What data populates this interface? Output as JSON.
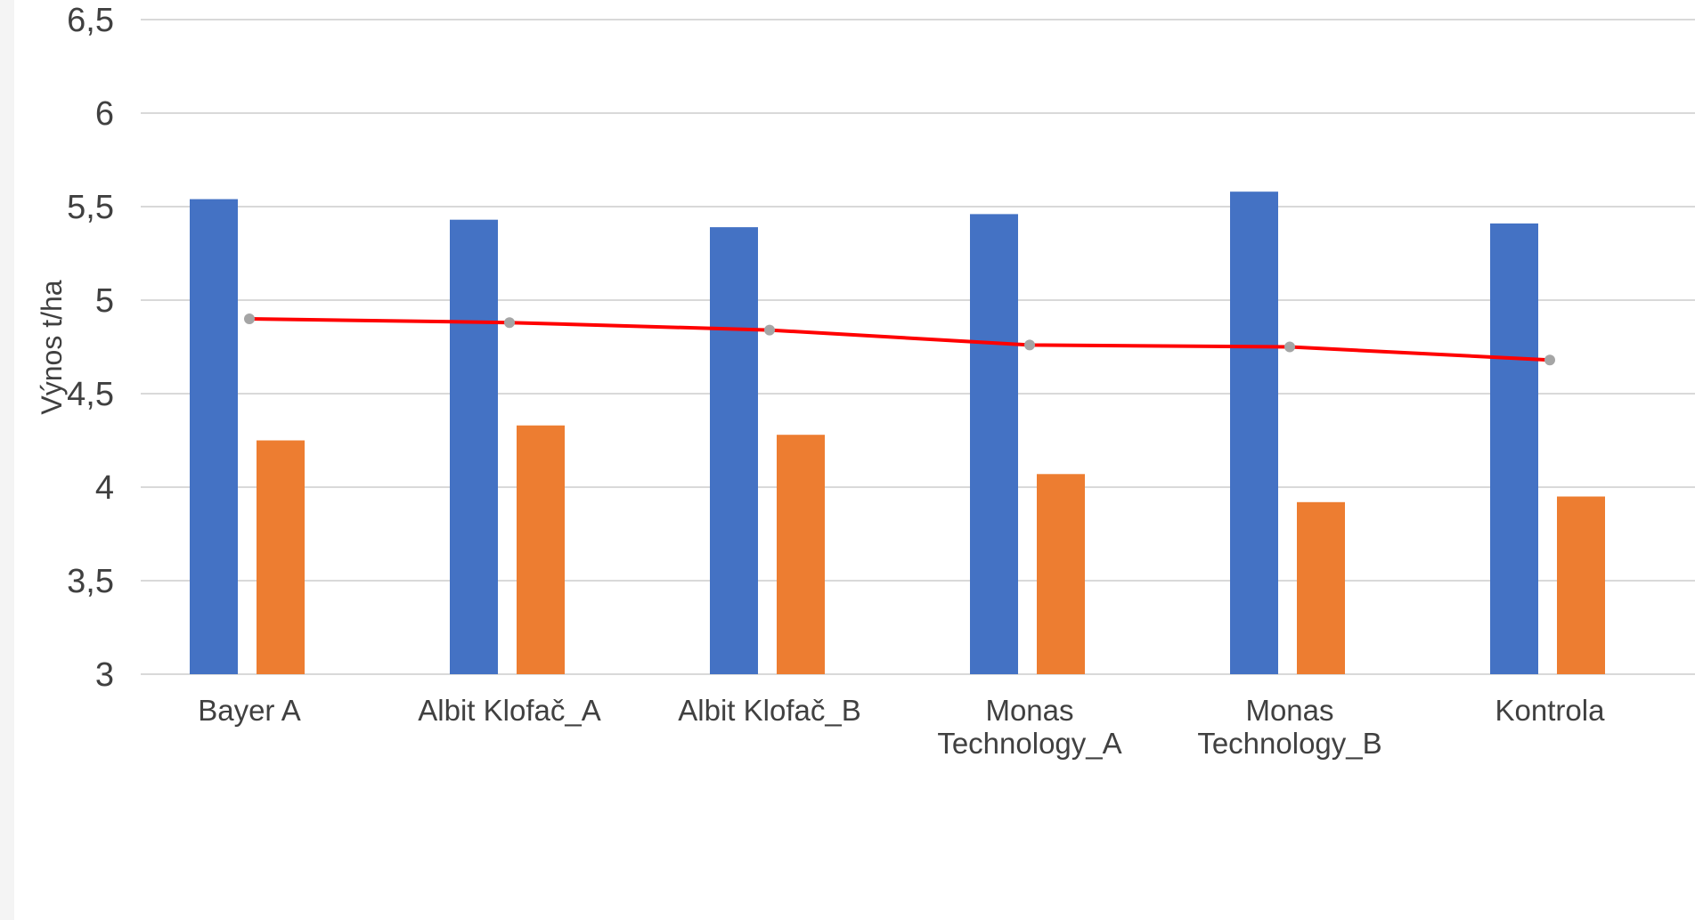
{
  "chart_data": {
    "type": "bar",
    "categories": [
      [
        "Bayer A"
      ],
      [
        "Albit Klofač_A"
      ],
      [
        "Albit Klofač_B"
      ],
      [
        "Monas",
        "Technology_A"
      ],
      [
        "Monas",
        "Technology_B"
      ],
      [
        "Kontrola"
      ]
    ],
    "series": [
      {
        "kind": "bar",
        "color": "#4472c4",
        "values": [
          5.54,
          5.43,
          5.39,
          5.46,
          5.58,
          5.41
        ]
      },
      {
        "kind": "bar",
        "color": "#ed7d31",
        "values": [
          4.25,
          4.33,
          4.28,
          4.07,
          3.92,
          3.95
        ]
      },
      {
        "kind": "line",
        "color": "#ff0000",
        "marker_color": "#a5a5a5",
        "values": [
          4.9,
          4.88,
          4.84,
          4.76,
          4.75,
          4.68
        ]
      }
    ],
    "ylabel": "Výnos t/ha",
    "ylim": [
      3,
      6.5
    ],
    "yticks": [
      "3",
      "3,5",
      "4",
      "4,5",
      "5",
      "5,5",
      "6",
      "6,5"
    ],
    "ytick_values": [
      3,
      3.5,
      4,
      4.5,
      5,
      5.5,
      6,
      6.5
    ],
    "grid": true
  }
}
